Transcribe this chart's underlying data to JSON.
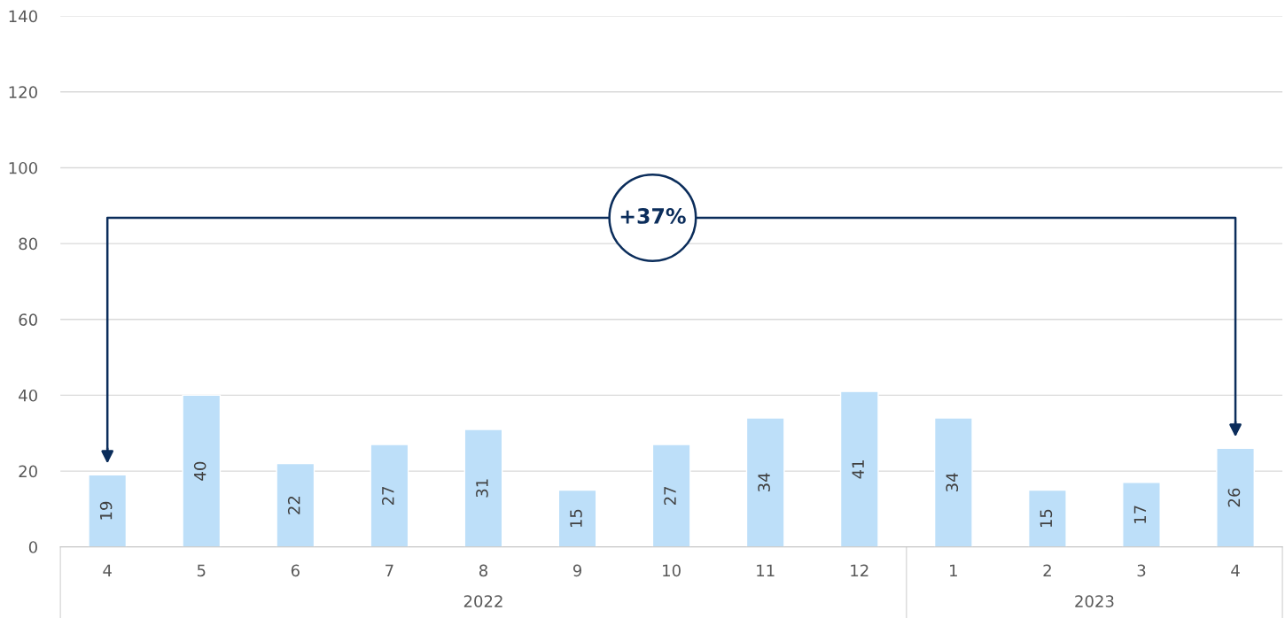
{
  "chart_data": {
    "type": "bar",
    "categories": [
      "4",
      "5",
      "6",
      "7",
      "8",
      "9",
      "10",
      "11",
      "12",
      "1",
      "2",
      "3",
      "4"
    ],
    "values": [
      19,
      40,
      22,
      27,
      31,
      15,
      27,
      34,
      41,
      34,
      15,
      17,
      26
    ],
    "color": "#bddff9",
    "ylim": [
      0,
      140
    ],
    "yticks": [
      0,
      20,
      40,
      60,
      80,
      100,
      120,
      140
    ],
    "grid": "y",
    "data_labels": true,
    "annotations": [
      "+37%",
      "2022",
      "2023"
    ]
  }
}
